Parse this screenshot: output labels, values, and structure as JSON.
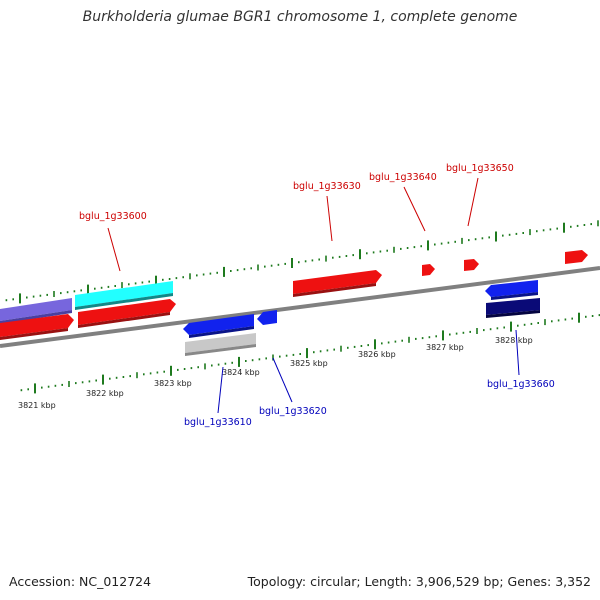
{
  "title": "Burkholderia glumae BGR1 chromosome 1, complete genome",
  "footer": {
    "accession": "Accession: NC_012724",
    "summary": "Topology: circular; Length: 3,906,529 bp; Genes: 3,352"
  },
  "colors": {
    "backbone": "#808080",
    "ticks": "#1e7a1e",
    "forward_label": "#cc0000",
    "reverse_label": "#0000bb"
  },
  "scale_labels": [
    "3821 kbp",
    "3822 kbp",
    "3823 kbp",
    "3824 kbp",
    "3825 kbp",
    "3826 kbp",
    "3827 kbp",
    "3828 kbp"
  ],
  "gene_labels": {
    "forward": [
      "bglu_1g33600",
      "bglu_1g33630",
      "bglu_1g33640",
      "bglu_1g33650"
    ],
    "reverse": [
      "bglu_1g33610",
      "bglu_1g33620",
      "bglu_1g33660"
    ]
  }
}
